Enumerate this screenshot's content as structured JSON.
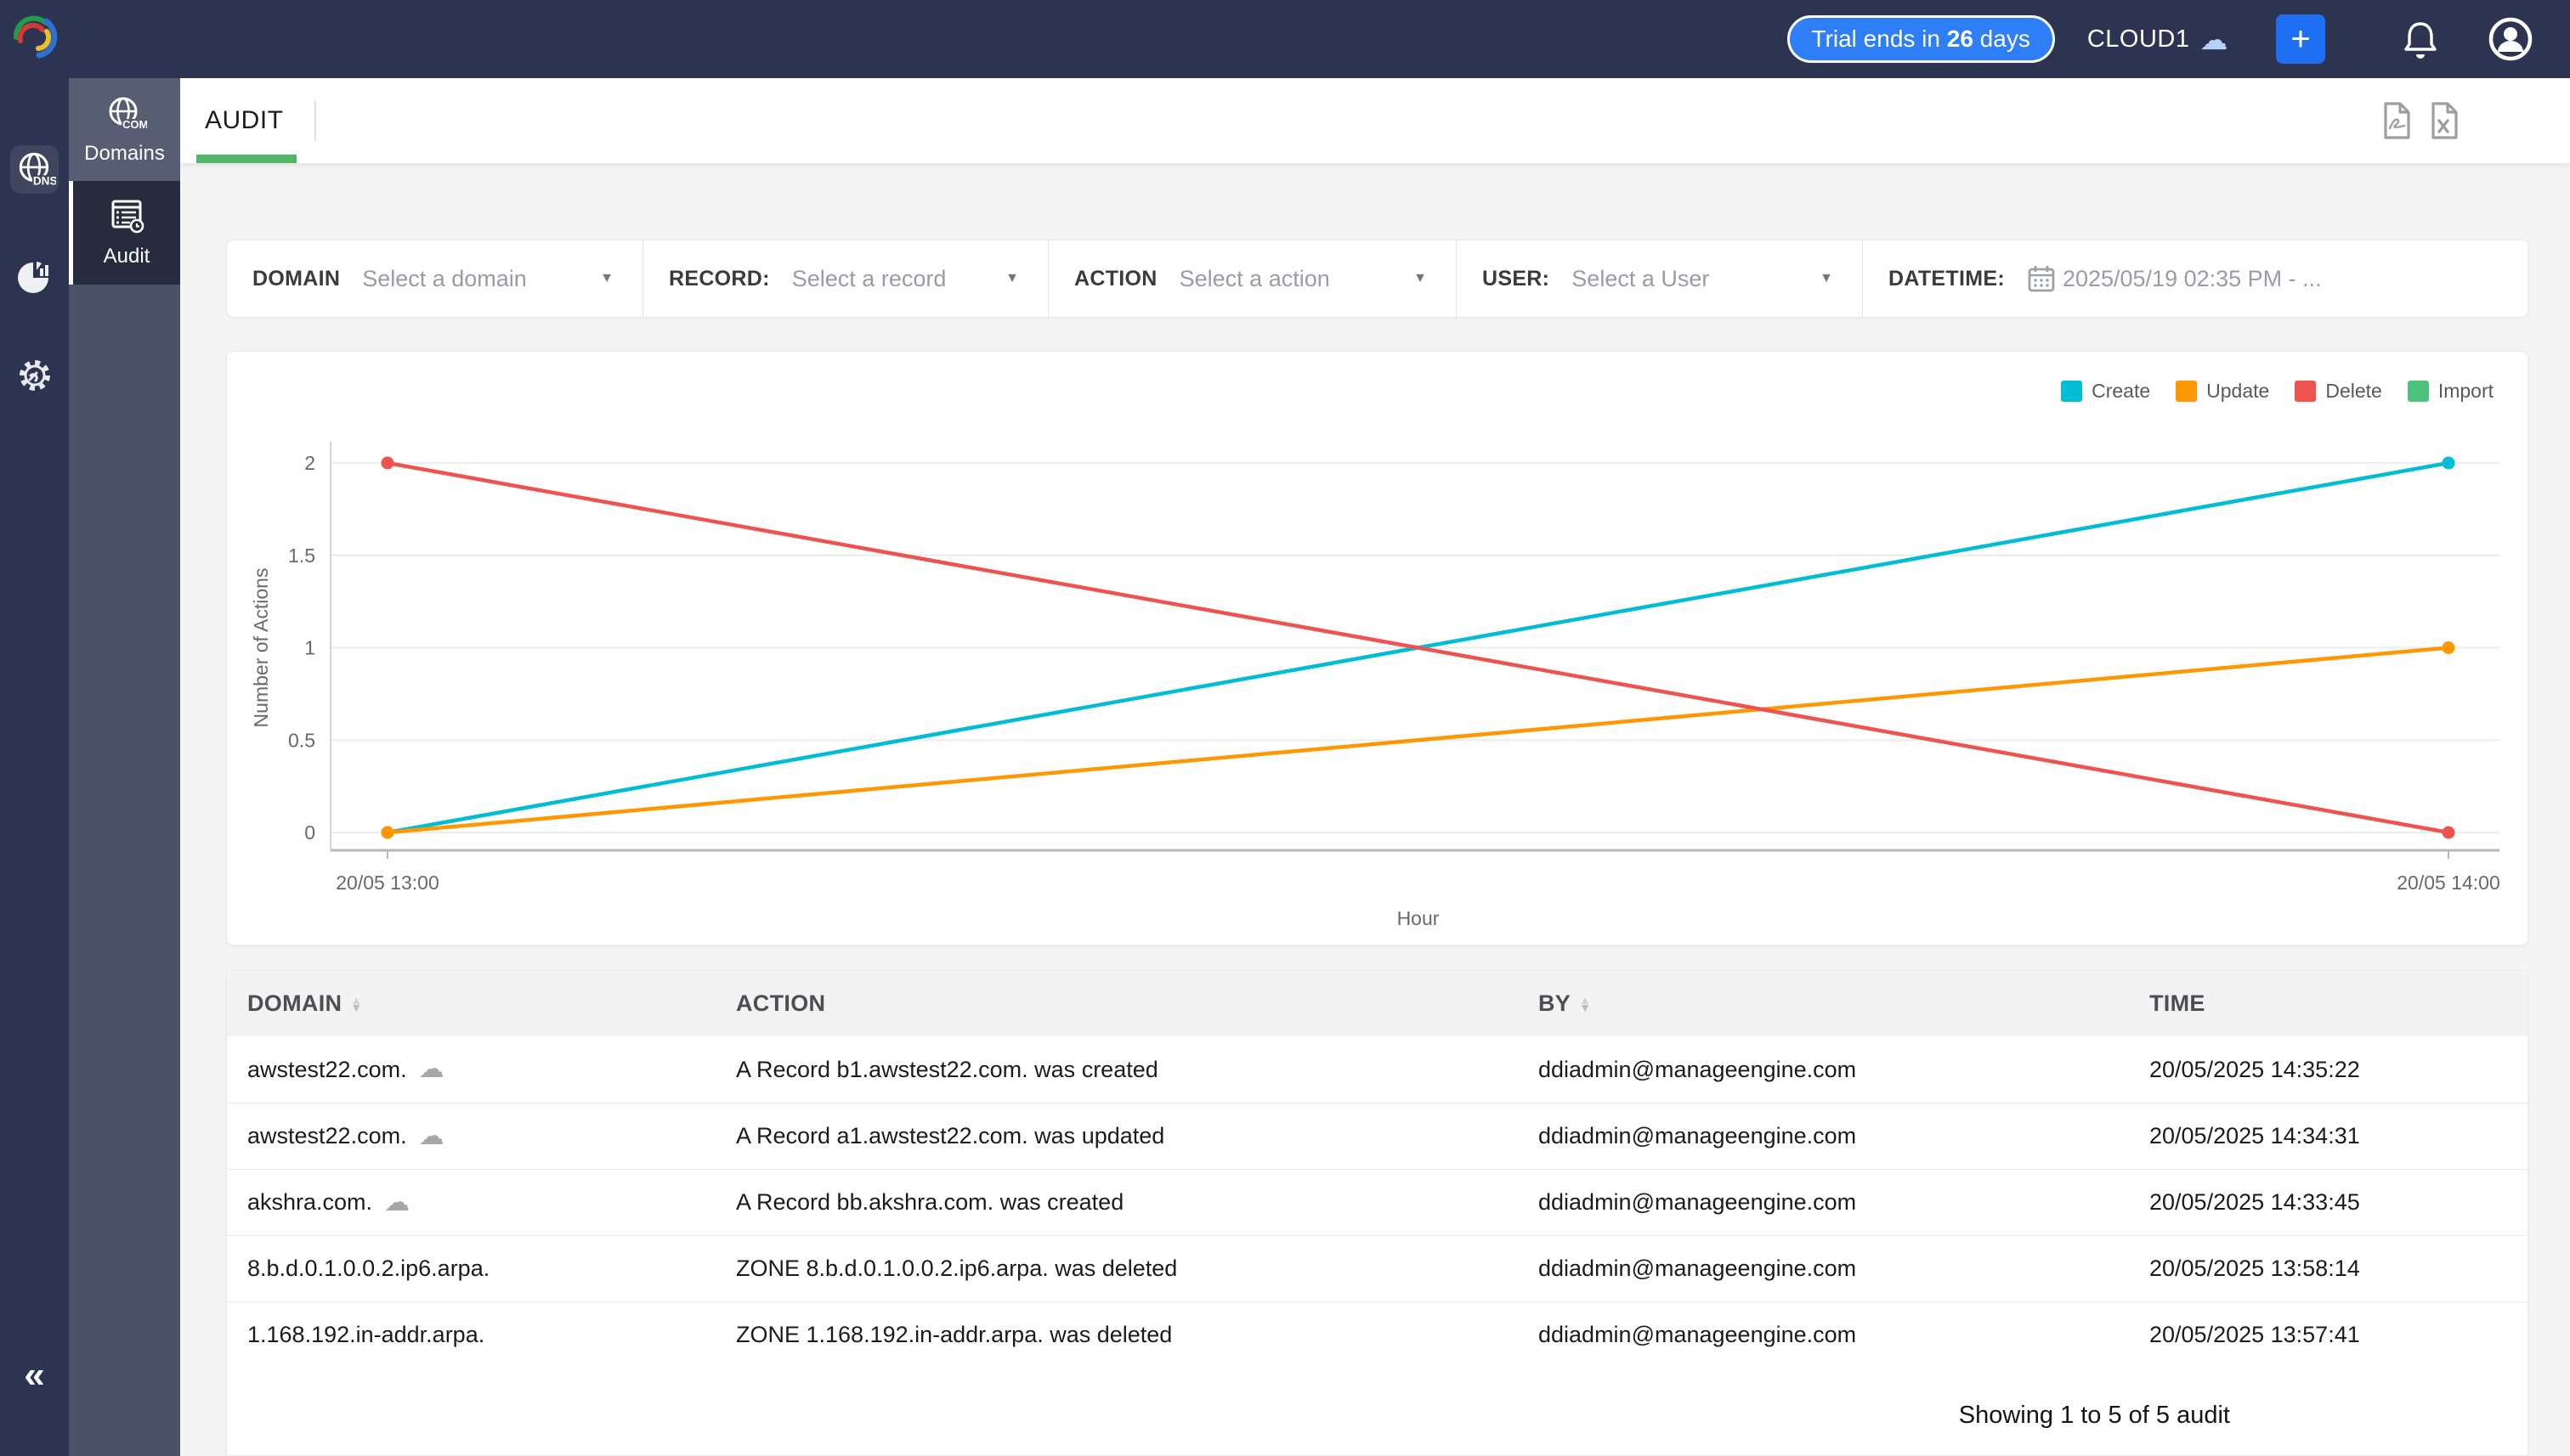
{
  "colors": {
    "topbar_navy": "#2d3452",
    "subrail": "#4b5266",
    "accent_green": "#53b567",
    "pill_blue": "#2e7ff7",
    "plus_blue": "#1f6ff2",
    "cloud_blue": "#b5d2f6"
  },
  "topbar": {
    "trial_prefix": "Trial ends in ",
    "trial_days": "26",
    "trial_suffix": " days",
    "org": "CLOUD1",
    "plus_label": "+"
  },
  "sidebar": {
    "dns_icon_label": "DNS",
    "collapse_glyph": "«",
    "nav": [
      {
        "label": "Domains",
        "icon_label": "COM"
      },
      {
        "label": "Audit"
      }
    ]
  },
  "header": {
    "title": "AUDIT"
  },
  "filters": [
    {
      "label": "DOMAIN",
      "value": "Select a domain"
    },
    {
      "label": "RECORD:",
      "value": "Select a record"
    },
    {
      "label": "ACTION",
      "value": "Select a action"
    },
    {
      "label": "USER:",
      "value": "Select a User"
    },
    {
      "label": "DATETIME:",
      "value": "2025/05/19 02:35 PM - ..."
    }
  ],
  "chart_data": {
    "type": "line",
    "x": [
      "20/05 13:00",
      "20/05 14:00"
    ],
    "series": [
      {
        "name": "Create",
        "color": "#00bcd4",
        "values": [
          0,
          2
        ]
      },
      {
        "name": "Update",
        "color": "#ff9800",
        "values": [
          0,
          1
        ]
      },
      {
        "name": "Delete",
        "color": "#ef5350",
        "values": [
          2,
          0
        ]
      },
      {
        "name": "Import",
        "color": "#4dc27f",
        "values": []
      }
    ],
    "ylabel": "Number of Actions",
    "xlabel": "Hour",
    "yticks": [
      0,
      0.5,
      1,
      1.5,
      2
    ],
    "ylim": [
      0,
      2
    ],
    "grid": true,
    "legend_position": "top-right"
  },
  "table": {
    "columns": [
      {
        "label": "DOMAIN",
        "sortable": true
      },
      {
        "label": "ACTION",
        "sortable": false
      },
      {
        "label": "BY",
        "sortable": true
      },
      {
        "label": "TIME",
        "sortable": false
      }
    ],
    "rows": [
      {
        "domain": "awstest22.com.",
        "cloud": true,
        "action": "A Record b1.awstest22.com. was created",
        "by": "ddiadmin@manageengine.com",
        "time": "20/05/2025 14:35:22"
      },
      {
        "domain": "awstest22.com.",
        "cloud": true,
        "action": "A Record a1.awstest22.com. was updated",
        "by": "ddiadmin@manageengine.com",
        "time": "20/05/2025 14:34:31"
      },
      {
        "domain": "akshra.com.",
        "cloud": true,
        "action": "A Record bb.akshra.com. was created",
        "by": "ddiadmin@manageengine.com",
        "time": "20/05/2025 14:33:45"
      },
      {
        "domain": "8.b.d.0.1.0.0.2.ip6.arpa.",
        "cloud": false,
        "action": "ZONE 8.b.d.0.1.0.0.2.ip6.arpa. was deleted",
        "by": "ddiadmin@manageengine.com",
        "time": "20/05/2025 13:58:14"
      },
      {
        "domain": "1.168.192.in-addr.arpa.",
        "cloud": false,
        "action": "ZONE 1.168.192.in-addr.arpa. was deleted",
        "by": "ddiadmin@manageengine.com",
        "time": "20/05/2025 13:57:41"
      }
    ]
  },
  "footer": {
    "summary": "Showing 1 to 5 of 5 audit"
  },
  "glyphs": {
    "caret": "▼",
    "sort_up": "▲",
    "sort_down": "▼",
    "cloud": "☁"
  }
}
